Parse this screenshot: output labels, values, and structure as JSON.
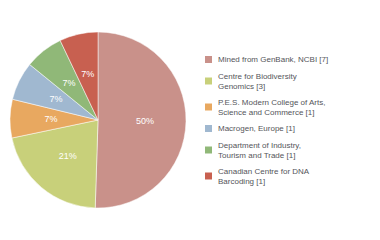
{
  "chart_data": {
    "type": "pie",
    "categories": [
      "Mined from GenBank, NCBI [7]",
      "Centre for Biodiversity\nGenomics [3]",
      "P.E.S. Modern College of Arts,\nScience and Commerce [1]",
      "Macrogen, Europe [1]",
      "Department of Industry,\nTourism and Trade [1]",
      "Canadian Centre for DNA\nBarcoding [1]"
    ],
    "values": [
      50,
      21,
      7,
      7,
      7,
      7
    ],
    "value_labels": [
      "50%",
      "21%",
      "7%",
      "7%",
      "7%",
      "7%"
    ],
    "colors": [
      "#c9918a",
      "#c8d07a",
      "#e8a860",
      "#a0b8d0",
      "#90b878",
      "#c86050"
    ],
    "data_labels": true,
    "legend": "right"
  }
}
